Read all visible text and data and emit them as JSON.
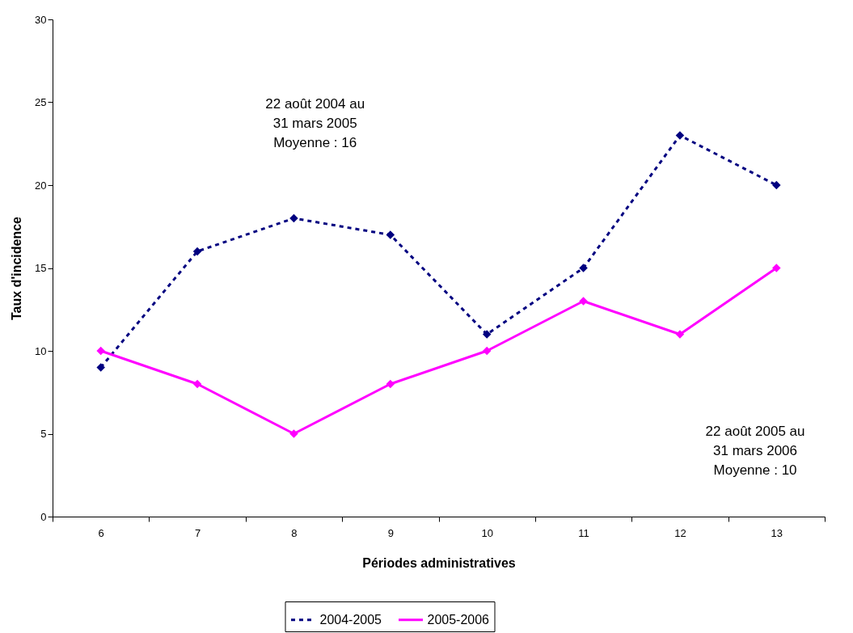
{
  "chart_data": {
    "type": "line",
    "xlabel": "Périodes administratives",
    "ylabel": "Taux d'incidence",
    "categories": [
      "6",
      "7",
      "8",
      "9",
      "10",
      "11",
      "12",
      "13"
    ],
    "series": [
      {
        "name": "2004-2005",
        "color": "#000080",
        "line_style": "dashed",
        "values": [
          9,
          16,
          18,
          17,
          11,
          15,
          23,
          20
        ]
      },
      {
        "name": "2005-2006",
        "color": "#ff00ff",
        "line_style": "solid",
        "values": [
          10,
          8,
          5,
          8,
          10,
          13,
          11,
          15
        ]
      }
    ],
    "ylim": [
      0,
      30
    ],
    "yticks": [
      0,
      5,
      10,
      15,
      20,
      25,
      30
    ],
    "grid": false,
    "legend": "bottom",
    "marker": "diamond",
    "annotations": [
      "22 août  2004 au\n31 mars 2005\nMoyenne : 16",
      "22 août  2005 au\n31 mars 2006\nMoyenne : 10"
    ]
  }
}
